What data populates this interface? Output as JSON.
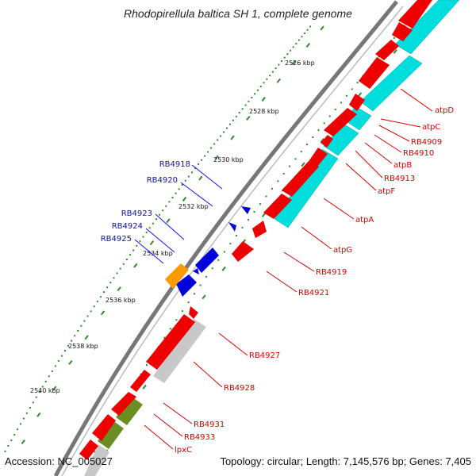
{
  "title": "Rhodopirellula baltica SH 1, complete genome",
  "accession": "Accession: NC_005027",
  "topology": "Topology: circular; Length: 7,145,576 bp; Genes: 7,405",
  "colors": {
    "forward_cds": "#ee0000",
    "reverse_cds": "#0000dd",
    "atp_operon": "#00dddd",
    "gray_feature": "#c8c8c8",
    "olive_feature": "#6b8e23",
    "orange_feature": "#ff9900",
    "ticks": "#2e8b2e",
    "backbone": "#777777",
    "red_label": "#dd0000",
    "blue_label": "#1010aa"
  },
  "scale_labels": [
    "2526 kbp",
    "2528 kbp",
    "2530 kbp",
    "2532 kbp",
    "2534 kbp",
    "2536 kbp",
    "2538 kbp",
    "2540 kbp"
  ],
  "forward_labels": [
    "atpD",
    "atpC",
    "RB4909",
    "RB4910",
    "atpB",
    "RB4913",
    "atpF",
    "atpA",
    "atpG",
    "RB4919",
    "RB4921",
    "RB4927",
    "RB4928",
    "RB4931",
    "RB4933",
    "lpxC"
  ],
  "reverse_labels": [
    "RB4918",
    "RB4920",
    "RB4923",
    "RB4924",
    "RB4925"
  ]
}
